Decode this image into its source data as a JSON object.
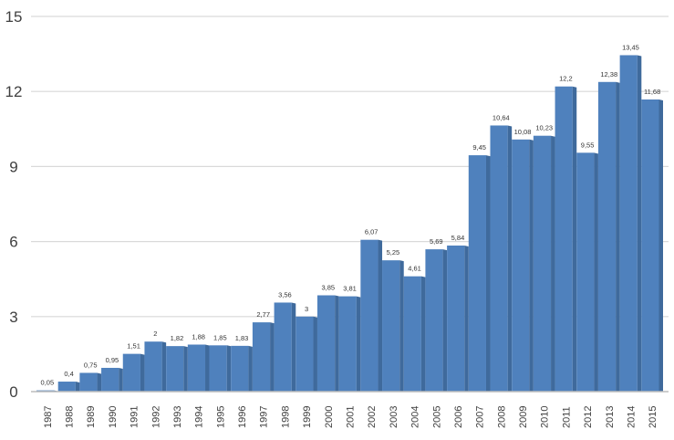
{
  "chart_data": {
    "type": "bar",
    "title": "",
    "xlabel": "",
    "ylabel": "",
    "ylim": [
      0,
      15
    ],
    "yticks": [
      "0",
      "3",
      "6",
      "9",
      "12",
      "15"
    ],
    "ytick_values": [
      0,
      3,
      6,
      9,
      12,
      15
    ],
    "grid": true,
    "categories": [
      "1987",
      "1988",
      "1989",
      "1990",
      "1991",
      "1992",
      "1993",
      "1994",
      "1995",
      "1996",
      "1997",
      "1998",
      "1999",
      "2000",
      "2001",
      "2002",
      "2003",
      "2004",
      "2005",
      "2006",
      "2007",
      "2008",
      "2009",
      "2010",
      "2011",
      "2012",
      "2013",
      "2014",
      "2015"
    ],
    "values": [
      0.05,
      0.4,
      0.75,
      0.95,
      1.51,
      2,
      1.82,
      1.88,
      1.85,
      1.83,
      2.77,
      3.56,
      3,
      3.85,
      3.81,
      6.07,
      5.25,
      4.61,
      5.69,
      5.84,
      9.45,
      10.64,
      10.08,
      10.23,
      12.2,
      9.55,
      12.38,
      13.45,
      11.68
    ],
    "data_labels": [
      "0,05",
      "0,4",
      "0,75",
      "0,95",
      "1,51",
      "2",
      "1,82",
      "1,88",
      "1,85",
      "1,83",
      "2,77",
      "3,56",
      "3",
      "3,85",
      "3,81",
      "6,07",
      "5,25",
      "4,61",
      "5,69",
      "5,84",
      "9,45",
      "10,64",
      "10,08",
      "10,23",
      "12,2",
      "9,55",
      "12,38",
      "13,45",
      "11,68"
    ],
    "colors": {
      "bar_front": "#4f81bd",
      "bar_side": "#3f6a9c",
      "grid": "#d9d9d9"
    }
  }
}
